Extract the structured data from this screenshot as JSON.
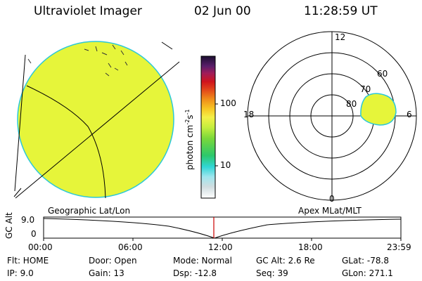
{
  "header": {
    "instrument": "Ultraviolet Imager",
    "date": "02 Jun 00",
    "time": "11:28:59 UT"
  },
  "colorbar": {
    "unit_label": "photon cm",
    "unit_exp1": "-2",
    "unit_s": "s",
    "unit_exp2": "-1",
    "tick_100": "100",
    "tick_10": "10"
  },
  "polar_plot": {
    "labels": {
      "mlt_12": "12",
      "mlt_18": "18",
      "mlt_6": "6",
      "mlt_0": "0",
      "lat_60": "60",
      "lat_70": "70",
      "lat_80": "80"
    }
  },
  "projection_labels": {
    "geographic": "Geographic Lat/Lon",
    "apex": "Apex MLat/MLT"
  },
  "timeline": {
    "axis_label": "GC Alt",
    "y_tick": "9.0",
    "y_tick2": "0",
    "ticks": [
      "00:00",
      "06:00",
      "12:00",
      "18:00",
      "23:59"
    ],
    "current_time_fraction": 0.478
  },
  "info": {
    "flt": "Flt: HOME",
    "ip": "IP:  9.0",
    "door": "Door: Open",
    "gain": "Gain: 13",
    "mode": "Mode: Normal",
    "dsp": "Dsp:   -12.8",
    "gc_alt": "GC Alt: 2.6 Re",
    "seq": "Seq: 39",
    "glat": "GLat: -78.8",
    "glon": "GLon: 271.1"
  },
  "colors": {
    "image_fill": "#e6f53a",
    "image_edge": "#2bc8d8",
    "indicator": "#cc0000"
  }
}
